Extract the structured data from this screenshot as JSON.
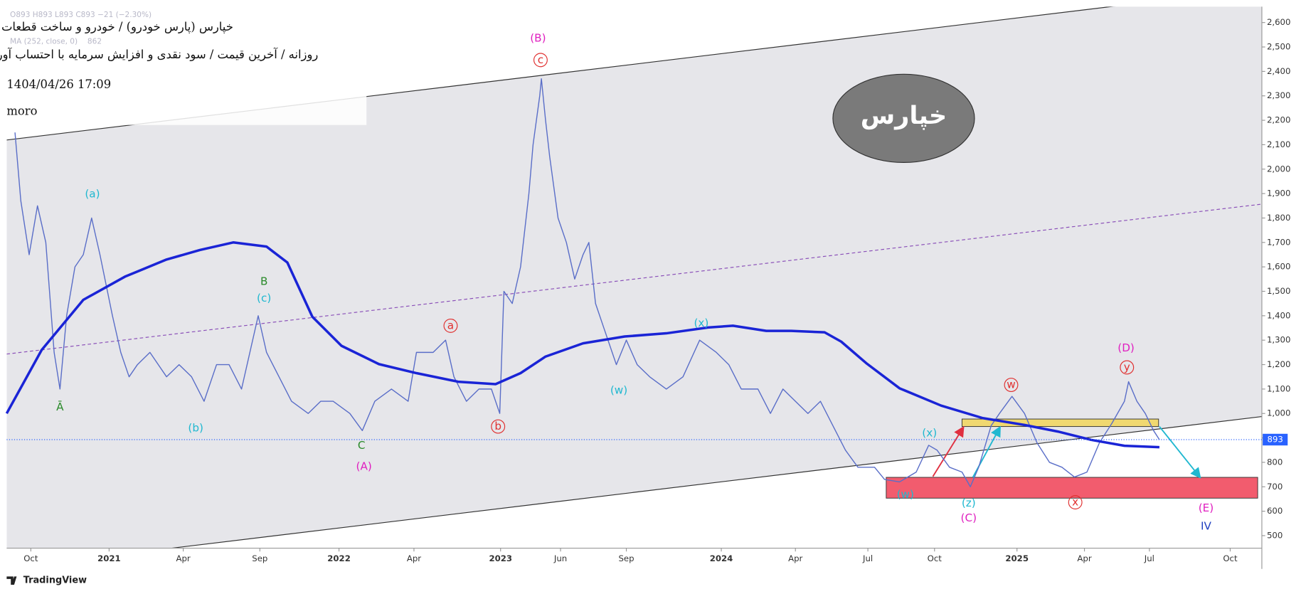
{
  "chart_data": {
    "type": "line",
    "ohlc_text": "O893 H893 L893 C893 −21 (−2.30%)",
    "title": "خپارس (پارس خودرو) / خودرو و ساخت قطعات",
    "subtitle": "روزانه / آخرین قیمت / سود نقدی و افزایش سرمایه با احتساب آورده",
    "timestamp": "1404/04/26 17:09",
    "author": "moro",
    "watermark": "خپارس",
    "brand": "TradingView",
    "color": "#5a6ec8",
    "x": [
      10,
      17,
      27,
      37,
      47,
      57,
      64,
      72,
      82,
      92,
      102,
      112,
      127,
      137,
      147,
      157,
      172,
      192,
      207,
      222,
      237,
      252,
      267,
      282,
      292,
      302,
      312,
      327,
      342,
      362,
      377,
      392,
      412,
      427,
      442,
      462,
      482,
      492,
      512,
      527,
      537,
      552,
      567,
      582,
      592,
      597,
      607,
      617,
      627,
      632,
      640,
      642,
      647,
      652,
      662,
      672,
      682,
      692,
      699,
      707,
      717,
      732,
      744,
      757,
      772,
      792,
      812,
      832,
      852,
      867,
      882,
      902,
      917,
      932,
      947,
      962,
      977,
      992,
      1007,
      1022,
      1042,
      1054,
      1072,
      1092,
      1107,
      1117,
      1132,
      1147,
      1157,
      1167,
      1182,
      1192,
      1207,
      1222,
      1237,
      1252,
      1267,
      1282,
      1297,
      1312,
      1327,
      1342,
      1347,
      1357,
      1367,
      1377,
      1384
    ],
    "values": [
      2150,
      1870,
      1650,
      1850,
      1700,
      1250,
      1100,
      1400,
      1600,
      1650,
      1800,
      1650,
      1400,
      1250,
      1150,
      1200,
      1250,
      1150,
      1200,
      1150,
      1050,
      1200,
      1200,
      1100,
      1250,
      1400,
      1250,
      1150,
      1050,
      1000,
      1050,
      1050,
      1000,
      930,
      1050,
      1100,
      1050,
      1250,
      1250,
      1300,
      1150,
      1050,
      1100,
      1100,
      1000,
      1500,
      1450,
      1600,
      1900,
      2100,
      2300,
      2370,
      2200,
      2050,
      1800,
      1700,
      1550,
      1650,
      1700,
      1450,
      1350,
      1200,
      1300,
      1200,
      1150,
      1100,
      1150,
      1300,
      1250,
      1200,
      1100,
      1100,
      1000,
      1100,
      1050,
      1000,
      1050,
      950,
      850,
      780,
      780,
      730,
      720,
      760,
      870,
      850,
      780,
      760,
      700,
      780,
      950,
      1000,
      1070,
      1000,
      880,
      800,
      780,
      740,
      760,
      880,
      960,
      1050,
      1130,
      1050,
      1000,
      930,
      893
    ],
    "last_price": 893,
    "overlays": [
      {
        "name": "MA (252, close, 0)",
        "value": 862,
        "color": "#1a24d6",
        "x": [
          0,
          42,
          92,
          142,
          192,
          232,
          272,
          312,
          337,
          367,
          402,
          447,
          492,
          542,
          587,
          617,
          647,
          692,
          742,
          792,
          842,
          872,
          912,
          942,
          982,
          1002,
          1032,
          1072,
          1122,
          1172,
          1222,
          1262,
          1302,
          1342,
          1384
        ],
        "values": [
          1000,
          1260,
          1465,
          1560,
          1630,
          1669,
          1700,
          1683,
          1618,
          1396,
          1277,
          1202,
          1165,
          1130,
          1120,
          1165,
          1233,
          1287,
          1315,
          1328,
          1352,
          1359,
          1338,
          1338,
          1332,
          1294,
          1206,
          1103,
          1032,
          981,
          953,
          926,
          892,
          868,
          862
        ]
      }
    ],
    "xlim": [
      0,
      1507
    ],
    "xticks": [
      {
        "value": 29,
        "label": "Oct"
      },
      {
        "value": 123,
        "label": "2021"
      },
      {
        "value": 212,
        "label": "Apr"
      },
      {
        "value": 304,
        "label": "Sep"
      },
      {
        "value": 399,
        "label": "2022"
      },
      {
        "value": 489,
        "label": "Apr"
      },
      {
        "value": 593,
        "label": "2023"
      },
      {
        "value": 665,
        "label": "Jun"
      },
      {
        "value": 744,
        "label": "Sep"
      },
      {
        "value": 858,
        "label": "2024"
      },
      {
        "value": 947,
        "label": "Apr"
      },
      {
        "value": 1034,
        "label": "Jul"
      },
      {
        "value": 1114,
        "label": "Oct"
      },
      {
        "value": 1213,
        "label": "2025"
      },
      {
        "value": 1294,
        "label": "Apr"
      },
      {
        "value": 1372,
        "label": "Jul"
      },
      {
        "value": 1469,
        "label": "Oct"
      }
    ],
    "ylim": [
      500,
      2600
    ],
    "yticks": [
      500,
      600,
      700,
      800,
      900,
      {
        "value": 1000,
        "label": "1,000"
      },
      {
        "value": 1100,
        "label": "1,100"
      },
      {
        "value": 1200,
        "label": "1,200"
      },
      {
        "value": 1300,
        "label": "1,300"
      },
      {
        "value": 1400,
        "label": "1,400"
      },
      {
        "value": 1500,
        "label": "1,500"
      },
      {
        "value": 1600,
        "label": "1,600"
      },
      {
        "value": 1700,
        "label": "1,700"
      },
      {
        "value": 1800,
        "label": "1,800"
      },
      {
        "value": 1900,
        "label": "1,900"
      },
      {
        "value": 2000,
        "label": "2,000"
      },
      {
        "value": 2100,
        "label": "2,100"
      },
      {
        "value": 2200,
        "label": "2,200"
      },
      {
        "value": 2300,
        "label": "2,300"
      },
      {
        "value": 2400,
        "label": "2,400"
      },
      {
        "value": 2500,
        "label": "2,500"
      },
      {
        "value": 2600,
        "label": "2,600"
      }
    ],
    "annotations": [
      {
        "text": "(B)",
        "color": "#e020c0"
      },
      {
        "text": "c",
        "color": "#e03030",
        "circled": true
      },
      {
        "text": "(a)",
        "color": "#20b8d0"
      },
      {
        "text": "Ā",
        "color": "#2a8a2a"
      },
      {
        "text": "(b)",
        "color": "#20b8d0"
      },
      {
        "text": "B",
        "color": "#2a8a2a"
      },
      {
        "text": "(c)",
        "color": "#20b8d0"
      },
      {
        "text": "C",
        "color": "#2a8a2a"
      },
      {
        "text": "(A)",
        "color": "#e020c0"
      },
      {
        "text": "a",
        "color": "#e03030",
        "circled": true
      },
      {
        "text": "b",
        "color": "#e03030",
        "circled": true
      },
      {
        "text": "(w)",
        "color": "#20b8d0"
      },
      {
        "text": "(x)",
        "color": "#20b8d0"
      },
      {
        "text": "(x)",
        "color": "#20b8d0"
      },
      {
        "text": "w",
        "color": "#e03030",
        "circled": true
      },
      {
        "text": "(D)",
        "color": "#e020c0"
      },
      {
        "text": "y",
        "color": "#e03030",
        "circled": true
      },
      {
        "text": "x",
        "color": "#e03030",
        "circled": true
      },
      {
        "text": "(z)",
        "color": "#20b8d0"
      },
      {
        "text": "(C)",
        "color": "#e020c0"
      },
      {
        "text": "(w)",
        "color": "#20b8d0"
      },
      {
        "text": "(E)",
        "color": "#e020c0"
      },
      {
        "text": "IV",
        "color": "#2040c0"
      }
    ]
  }
}
